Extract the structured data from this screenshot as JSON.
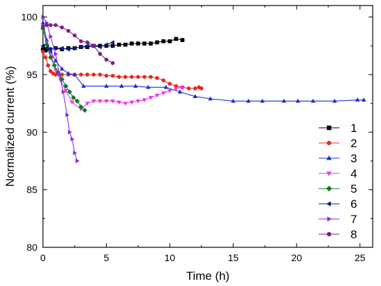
{
  "chart_data": {
    "type": "line",
    "title": "",
    "xlabel": "Time (h)",
    "ylabel": "Normalized current (%)",
    "xlim": [
      0,
      26
    ],
    "ylim": [
      80,
      101
    ],
    "xticks": [
      0,
      5,
      10,
      15,
      20,
      25
    ],
    "yticks": [
      80,
      85,
      90,
      95,
      100
    ],
    "grid": false,
    "legend_position": "lower-right",
    "series": [
      {
        "name": "1",
        "color": "#000000",
        "marker": "square",
        "x": [
          0,
          0.2,
          0.5,
          1,
          1.5,
          2,
          2.5,
          3,
          3.5,
          4,
          4.5,
          5,
          5.5,
          6,
          6.5,
          7,
          7.5,
          8,
          8.5,
          9,
          9.5,
          10,
          10.5,
          11
        ],
        "y": [
          97.2,
          97.1,
          97.2,
          97.3,
          97.2,
          97.3,
          97.3,
          97.4,
          97.4,
          97.5,
          97.5,
          97.5,
          97.5,
          97.6,
          97.6,
          97.7,
          97.7,
          97.7,
          97.7,
          97.8,
          97.9,
          97.9,
          98.1,
          98.0
        ]
      },
      {
        "name": "2",
        "color": "#e8291c",
        "marker": "circle",
        "x": [
          0,
          0.2,
          0.4,
          0.6,
          0.8,
          1,
          1.5,
          2,
          2.5,
          3,
          3.5,
          4,
          4.5,
          5,
          5.5,
          6,
          6.5,
          7,
          7.5,
          8,
          8.5,
          9,
          9.5,
          10,
          10.5,
          11,
          11.5,
          12,
          12.3,
          12.5
        ],
        "y": [
          97,
          96.5,
          95.8,
          95.3,
          95.1,
          95.0,
          95.0,
          95.0,
          95.0,
          95.0,
          95.0,
          95.0,
          95.0,
          94.9,
          94.9,
          94.8,
          94.8,
          94.8,
          94.8,
          94.8,
          94.8,
          94.7,
          94.5,
          94.2,
          94.0,
          93.9,
          93.8,
          93.8,
          93.9,
          93.8
        ]
      },
      {
        "name": "3",
        "color": "#1c2fcf",
        "marker": "triangle-up",
        "x": [
          0,
          0.3,
          0.6,
          1.0,
          1.5,
          2.0,
          2.5,
          3.2,
          5,
          6.2,
          7.3,
          8.3,
          9.7,
          10.8,
          12,
          13.2,
          15,
          16.2,
          17.3,
          19,
          20.1,
          21.3,
          23,
          24.8,
          25.3
        ],
        "y": [
          99.5,
          98.0,
          97.0,
          96.2,
          95.5,
          95.1,
          95.0,
          94.0,
          94.0,
          94.0,
          94.0,
          93.9,
          93.9,
          93.5,
          93.1,
          92.9,
          92.7,
          92.7,
          92.7,
          92.7,
          92.7,
          92.7,
          92.7,
          92.8,
          92.8
        ]
      },
      {
        "name": "4",
        "color": "#ee35ee",
        "marker": "triangle-down",
        "x": [
          0,
          0.3,
          0.7,
          1.0,
          1.4,
          1.8,
          2.3,
          3.0,
          3.5,
          4.0,
          4.5,
          5.0,
          5.5,
          6.0,
          6.5,
          7.0,
          7.5,
          8.0,
          8.5,
          9.0,
          9.5,
          10.0,
          10.5,
          11.0
        ],
        "y": [
          99,
          97.8,
          96.5,
          95.4,
          94.5,
          93.6,
          92.6,
          92.0,
          92.5,
          92.7,
          92.7,
          92.7,
          92.7,
          92.6,
          92.5,
          92.6,
          92.7,
          92.8,
          93.0,
          93.2,
          93.4,
          93.6,
          93.8,
          93.9
        ]
      },
      {
        "name": "5",
        "color": "#0b7d1c",
        "marker": "diamond",
        "x": [
          0,
          0.3,
          0.6,
          0.9,
          1.2,
          1.5,
          1.8,
          2.1,
          2.4,
          2.7,
          3.0,
          3.3
        ],
        "y": [
          99,
          97.6,
          96.5,
          95.8,
          95.2,
          94.6,
          94.0,
          93.5,
          93.0,
          92.7,
          92.2,
          91.9
        ]
      },
      {
        "name": "6",
        "color": "#0c1880",
        "marker": "triangle-left",
        "x": [
          0,
          0.3,
          0.6,
          1.0,
          1.5,
          2.0,
          2.5,
          3.0,
          3.5,
          4.0,
          4.5,
          5.0,
          5.5
        ],
        "y": [
          97.5,
          97.3,
          97.2,
          97.3,
          97.3,
          97.2,
          97.3,
          97.4,
          97.5,
          97.5,
          97.4,
          97.6,
          97.8
        ]
      },
      {
        "name": "7",
        "color": "#8a2be2",
        "marker": "triangle-right",
        "x": [
          0,
          0.3,
          0.6,
          1.0,
          1.3,
          1.6,
          1.9,
          2.1,
          2.3,
          2.5,
          2.7
        ],
        "y": [
          100,
          99.5,
          98.3,
          96.8,
          95.0,
          93.5,
          91.5,
          90.0,
          89.4,
          88.2,
          87.5
        ]
      },
      {
        "name": "8",
        "color": "#7a2180",
        "marker": "circle",
        "x": [
          0,
          0.3,
          0.6,
          1.0,
          1.5,
          2.0,
          2.5,
          3.0,
          3.5,
          4.0,
          4.5,
          5.0,
          5.5
        ],
        "y": [
          99.2,
          99.3,
          99.3,
          99.3,
          99.1,
          98.8,
          98.4,
          97.9,
          97.8,
          97.5,
          96.8,
          96.3,
          96.0
        ]
      }
    ]
  }
}
